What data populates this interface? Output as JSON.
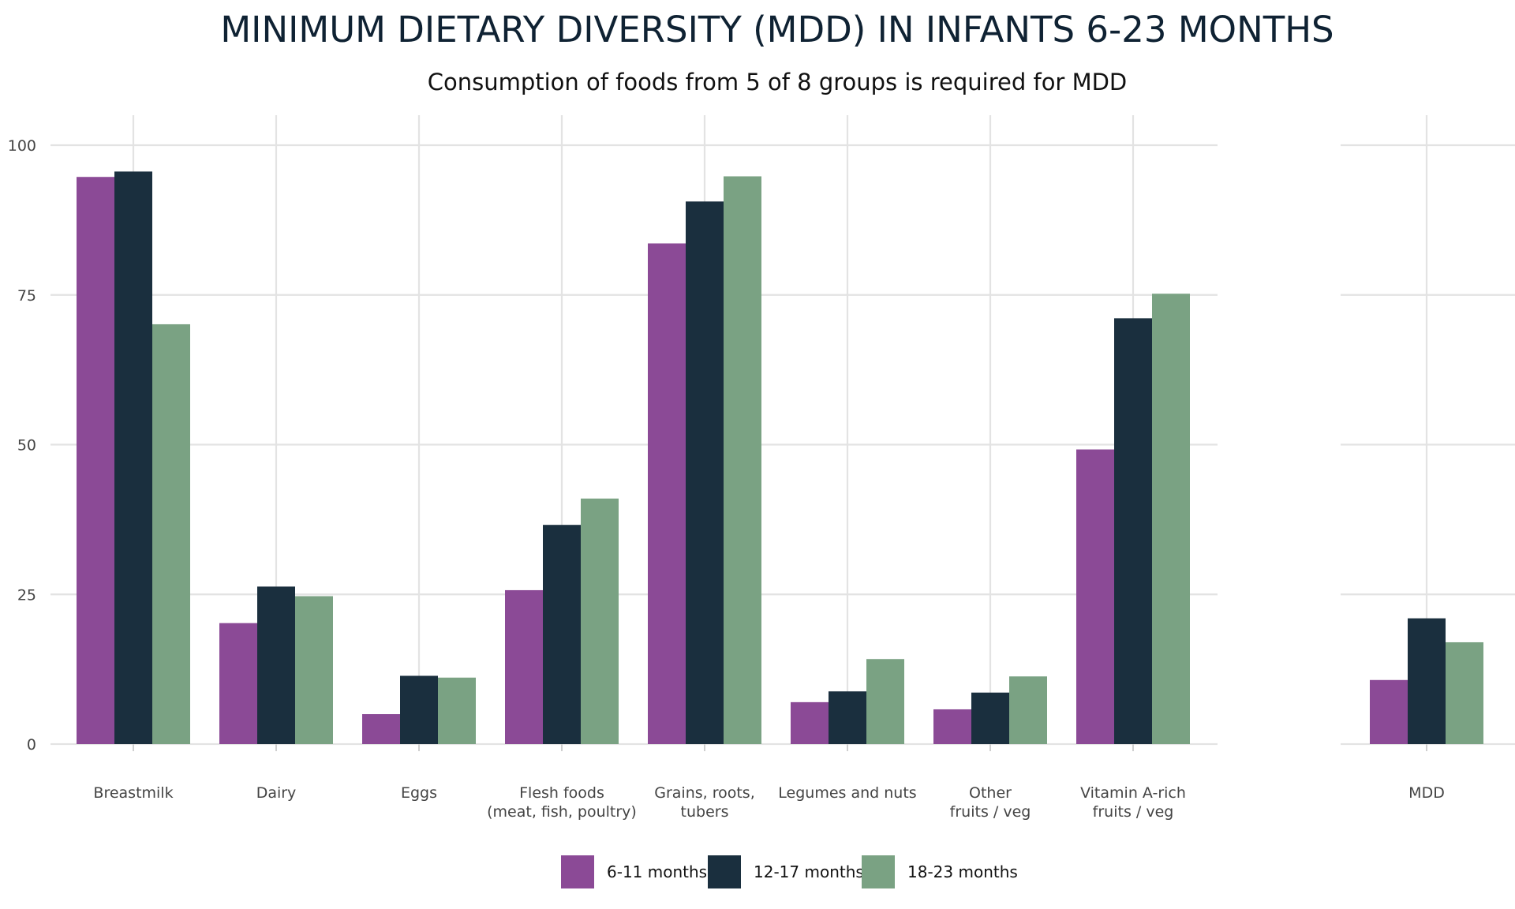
{
  "chart_data": {
    "type": "bar",
    "title": "MINIMUM DIETARY DIVERSITY (MDD) IN INFANTS 6-23 MONTHS",
    "subtitle": "Consumption of foods from 5 of 8 groups is required for MDD",
    "xlabel": "",
    "ylabel": "",
    "ylim": [
      0,
      100
    ],
    "yticks": [
      "0",
      "25",
      "50",
      "75",
      "100"
    ],
    "grid": true,
    "legend_position": "bottom",
    "panels": [
      {
        "categories": [
          [
            "Breastmilk"
          ],
          [
            "Dairy"
          ],
          [
            "Eggs"
          ],
          [
            "Flesh foods",
            "(meat, fish, poultry)"
          ],
          [
            "Grains, roots,",
            "tubers"
          ],
          [
            "Legumes and nuts"
          ],
          [
            "Other",
            "fruits / veg"
          ],
          [
            "Vitamin A-rich",
            "fruits / veg"
          ]
        ],
        "series": [
          {
            "name": "6-11 months",
            "values": [
              94.7,
              20.2,
              5.0,
              25.7,
              83.6,
              7.0,
              5.8,
              49.2
            ]
          },
          {
            "name": "12-17 months",
            "values": [
              95.6,
              26.3,
              11.4,
              36.6,
              90.6,
              8.8,
              8.6,
              71.1
            ]
          },
          {
            "name": "18-23 months",
            "values": [
              70.1,
              24.7,
              11.1,
              41.0,
              94.8,
              14.2,
              11.3,
              75.2
            ]
          }
        ]
      },
      {
        "categories": [
          [
            "MDD"
          ]
        ],
        "series": [
          {
            "name": "6-11 months",
            "values": [
              10.7
            ]
          },
          {
            "name": "12-17 months",
            "values": [
              21.0
            ]
          },
          {
            "name": "18-23 months",
            "values": [
              17.0
            ]
          }
        ]
      }
    ],
    "legend": [
      "6-11 months",
      "12-17 months",
      "18-23 months"
    ],
    "colors": [
      "#8b4a96",
      "#1a2f3e",
      "#7aa283"
    ]
  }
}
